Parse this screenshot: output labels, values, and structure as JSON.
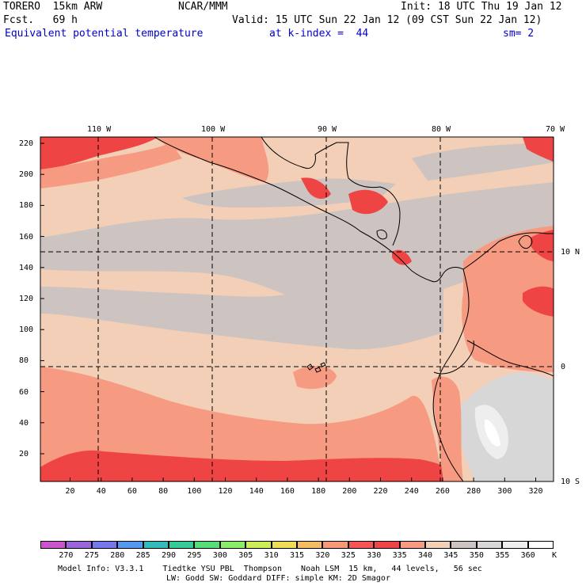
{
  "header": {
    "model": "TORERO  15km ARW",
    "org": "NCAR/MMM",
    "init": "Init: 18 UTC Thu 19 Jan 12",
    "fcst": "Fcst.   69 h",
    "valid": "Valid: 15 UTC Sun 22 Jan 12 (09 CST Sun 22 Jan 12)",
    "field": "Equivalent potential temperature",
    "level": "at k-index =  44",
    "smooth": "sm= 2"
  },
  "map": {
    "lon_labels": [
      "110 W",
      "100 W",
      "90 W",
      "80 W",
      "70 W"
    ],
    "lat_labels": [
      "10 N",
      "0",
      "10 S"
    ],
    "y_ticks": [
      "220",
      "200",
      "180",
      "160",
      "140",
      "120",
      "100",
      "80",
      "60",
      "40",
      "20"
    ],
    "x_ticks": [
      "20",
      "40",
      "60",
      "80",
      "100",
      "120",
      "140",
      "160",
      "180",
      "200",
      "220",
      "240",
      "260",
      "280",
      "300",
      "320"
    ]
  },
  "colorbar": {
    "labels": [
      "270",
      "275",
      "280",
      "285",
      "290",
      "295",
      "300",
      "305",
      "310",
      "315",
      "320",
      "325",
      "330",
      "335",
      "340",
      "345",
      "350",
      "355",
      "360"
    ],
    "unit": "K",
    "colors": [
      "#cc55cc",
      "#9966dd",
      "#7777ee",
      "#5599ee",
      "#33bbbb",
      "#33cc99",
      "#55dd77",
      "#88ee66",
      "#ccee55",
      "#eedd55",
      "#f7bb66",
      "#f79977",
      "#f65555",
      "#ef4444",
      "#f79a82",
      "#f3cfb7",
      "#cdc3c0",
      "#d7d7d7",
      "#eeeeee",
      "#ffffff"
    ]
  },
  "footer": {
    "line1": "Model Info: V3.3.1    Tiedtke YSU PBL  Thompson    Noah LSM  15 km,   44 levels,   56 sec",
    "line2": "LW: Godd SW: Goddard DIFF: simple KM: 2D Smagor"
  }
}
